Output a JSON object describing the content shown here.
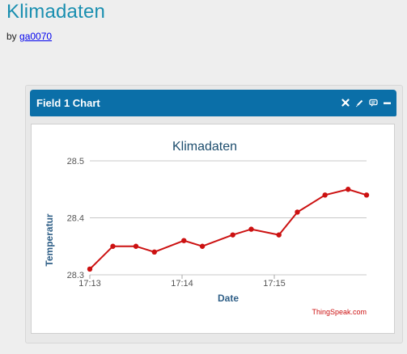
{
  "page": {
    "title": "Klimadaten",
    "by_prefix": "by",
    "author": "ga0070"
  },
  "widget": {
    "title": "Field 1 Chart",
    "controls": [
      {
        "name": "close-icon",
        "glyph": "✖"
      },
      {
        "name": "edit-icon",
        "glyph": "✎"
      },
      {
        "name": "comment-icon",
        "glyph": "💬"
      },
      {
        "name": "minimize-icon",
        "glyph": "▬"
      }
    ],
    "header_color": "#0b6fa8"
  },
  "chart_data": {
    "type": "line",
    "title": "Klimadaten",
    "xlabel": "Date",
    "ylabel": "Temperatur",
    "credit": "ThingSpeak.com",
    "ylim": [
      28.3,
      28.5
    ],
    "y_ticks": [
      "28.3",
      "28.4",
      "28.5"
    ],
    "x_ticks": [
      {
        "label": "17:13",
        "x": 0.0
      },
      {
        "label": "17:14",
        "x": 1.0
      },
      {
        "label": "17:15",
        "x": 2.0
      }
    ],
    "xlim": [
      0.0,
      3.0
    ],
    "grid": true,
    "series": [
      {
        "color": "#cc1111",
        "points": [
          {
            "x": 0.0,
            "y": 28.31
          },
          {
            "x": 0.25,
            "y": 28.35
          },
          {
            "x": 0.5,
            "y": 28.35
          },
          {
            "x": 0.7,
            "y": 28.34
          },
          {
            "x": 1.02,
            "y": 28.36
          },
          {
            "x": 1.22,
            "y": 28.35
          },
          {
            "x": 1.55,
            "y": 28.37
          },
          {
            "x": 1.75,
            "y": 28.38
          },
          {
            "x": 2.05,
            "y": 28.37
          },
          {
            "x": 2.25,
            "y": 28.41
          },
          {
            "x": 2.55,
            "y": 28.44
          },
          {
            "x": 2.8,
            "y": 28.45
          },
          {
            "x": 3.0,
            "y": 28.44
          }
        ]
      }
    ]
  }
}
